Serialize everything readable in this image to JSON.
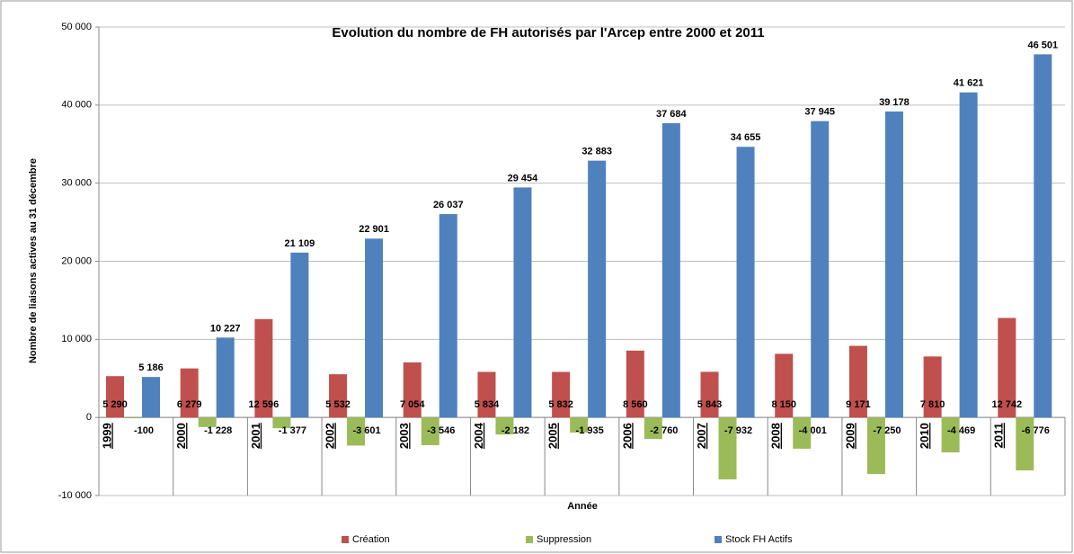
{
  "chart_data": {
    "type": "bar",
    "title": "Evolution du nombre de FH autorisés par l'Arcep entre 2000 et 2011",
    "x_label": "Année",
    "y_label": "Nombre de liaisons actives au 31 décembre",
    "categories": [
      "1999",
      "2000",
      "2001",
      "2002",
      "2003",
      "2004",
      "2005",
      "2006",
      "2007",
      "2008",
      "2009",
      "2010",
      "2011"
    ],
    "series": [
      {
        "name": "Création",
        "color": "#c0504d",
        "values": [
          5290,
          6279,
          12596,
          5532,
          7054,
          5834,
          5832,
          8560,
          5843,
          8150,
          9171,
          7810,
          12742
        ],
        "value_labels": [
          "5 290",
          "6 279",
          "12 596",
          "5 532",
          "7 054",
          "5 834",
          "5 832",
          "8 560",
          "5 843",
          "8 150",
          "9 171",
          "7 810",
          "12 742"
        ]
      },
      {
        "name": "Suppression",
        "color": "#9bbb59",
        "values": [
          -100,
          -1228,
          -1377,
          -3601,
          -3546,
          -2182,
          -1935,
          -2760,
          -7932,
          -4001,
          -7250,
          -4469,
          -6776
        ],
        "value_labels": [
          "-100",
          "-1 228",
          "-1 377",
          "-3 601",
          "-3 546",
          "-2 182",
          "-1 935",
          "-2 760",
          "-7 932",
          "-4 001",
          "-7 250",
          "-4 469",
          "-6 776"
        ]
      },
      {
        "name": "Stock FH Actifs",
        "color": "#4f81bd",
        "values": [
          5186,
          10227,
          21109,
          22901,
          26037,
          29454,
          32883,
          37684,
          34655,
          37945,
          39178,
          41621,
          46501
        ],
        "value_labels": [
          "5 186",
          "10 227",
          "21 109",
          "22 901",
          "26 037",
          "29 454",
          "32 883",
          "37 684",
          "34 655",
          "37 945",
          "39 178",
          "41 621",
          "46 501"
        ]
      }
    ],
    "ylim": [
      -10000,
      50000
    ],
    "yticks": [
      {
        "value": -10000,
        "label": "-10 000"
      },
      0,
      {
        "value": 10000,
        "label": "10 000"
      },
      {
        "value": 20000,
        "label": "20 000"
      },
      {
        "value": 30000,
        "label": "30 000"
      },
      {
        "value": 40000,
        "label": "40 000"
      },
      {
        "value": 50000,
        "label": "50 000"
      }
    ],
    "grid": true,
    "legend": "bottom"
  }
}
